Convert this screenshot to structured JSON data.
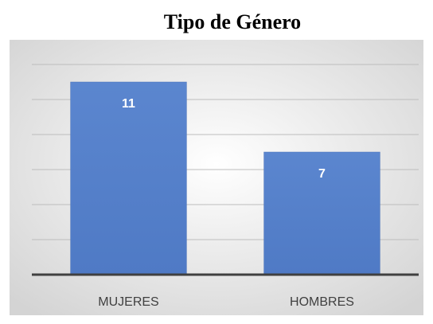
{
  "chart_data": {
    "type": "bar",
    "title": "Tipo de Género",
    "categories": [
      "MUJERES",
      "HOMBRES"
    ],
    "values": [
      11,
      7
    ],
    "color": "#4472c4",
    "ylim": [
      0,
      12
    ],
    "yticks": [
      0,
      2,
      4,
      6,
      8,
      10,
      12
    ],
    "grid": true
  }
}
